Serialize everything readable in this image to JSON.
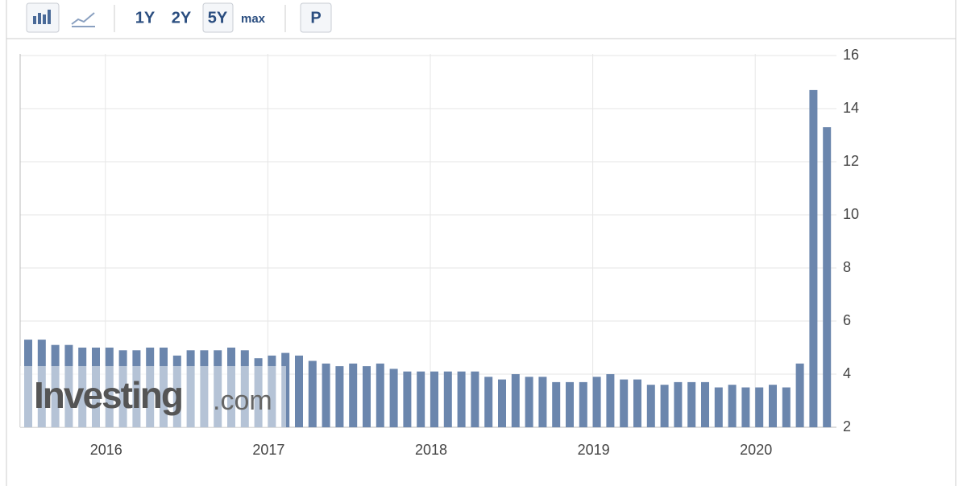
{
  "toolbar": {
    "buttons": [
      "1Y",
      "2Y",
      "5Y",
      "max",
      "P"
    ]
  },
  "watermark": {
    "brand": "Investing",
    "suffix": ".com"
  },
  "chart_data": {
    "type": "bar",
    "color": "#6b86ad",
    "grid": true,
    "y_axis_side": "right",
    "categories": [
      null,
      null,
      null,
      null,
      null,
      null,
      "2016",
      null,
      null,
      null,
      null,
      null,
      null,
      null,
      null,
      null,
      null,
      null,
      "2017",
      null,
      null,
      null,
      null,
      null,
      null,
      null,
      null,
      null,
      null,
      null,
      "2018",
      null,
      null,
      null,
      null,
      null,
      null,
      null,
      null,
      null,
      null,
      null,
      "2019",
      null,
      null,
      null,
      null,
      null,
      null,
      null,
      null,
      null,
      null,
      null,
      "2020",
      null,
      null,
      null,
      null,
      null
    ],
    "values": [
      5.3,
      5.3,
      5.1,
      5.1,
      5.0,
      5.0,
      5.0,
      4.9,
      4.9,
      5.0,
      5.0,
      4.7,
      4.9,
      4.9,
      4.9,
      5.0,
      4.9,
      4.6,
      4.7,
      4.8,
      4.7,
      4.5,
      4.4,
      4.3,
      4.4,
      4.3,
      4.4,
      4.2,
      4.1,
      4.1,
      4.1,
      4.1,
      4.1,
      4.1,
      3.9,
      3.8,
      4.0,
      3.9,
      3.9,
      3.7,
      3.7,
      3.7,
      3.9,
      4.0,
      3.8,
      3.8,
      3.6,
      3.6,
      3.7,
      3.7,
      3.7,
      3.5,
      3.6,
      3.5,
      3.5,
      3.6,
      3.5,
      4.4,
      14.7,
      13.3
    ],
    "ylim": [
      2,
      16
    ],
    "yticks": [
      2,
      4,
      6,
      8,
      10,
      12,
      14,
      16
    ]
  }
}
